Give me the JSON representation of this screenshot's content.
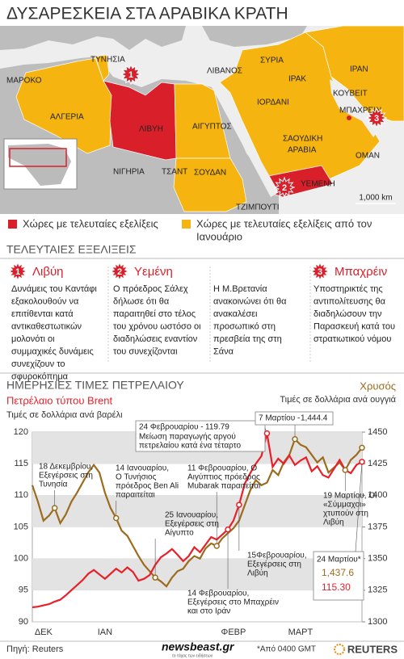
{
  "title": "ΔΥΣΑΡΕΣΚΕΙΑ ΣΤΑ ΑΡΑΒΙΚΑ ΚΡΑΤΗ",
  "map": {
    "labels": [
      "ΜΑΡΟΚΟ",
      "ΤΥΝΗΣΙΑ",
      "ΑΛΓΕΡΙΑ",
      "ΛΙΒΥΗ",
      "ΑΙΓΥΠΤΟΣ",
      "ΛΙΒΑΝΟΣ",
      "ΣΥΡΙΑ",
      "ΙΡΑΚ",
      "ΙΡΑΝ",
      "ΙΟΡΔΑΝΙ",
      "ΚΟΥΒΕΙΤ",
      "ΜΠΑΧΡΕΙΝ",
      "ΣΑΟΥΔΙΚΗ",
      "ΑΡΑΒΙΑ",
      "ΟΜΑΝ",
      "ΥΕΜΕΝΗ",
      "ΣΟΥΔΑΝ",
      "ΤΖΙΜΠΟΥΤΙ",
      "ΝΙΓΗΡΙΑ",
      "ΤΣΑΝΤ"
    ],
    "markers": [
      "1",
      "2",
      "3"
    ],
    "scale": "1,000 km"
  },
  "legend": [
    {
      "color": "#d9202a",
      "lines": [
        "Χώρες με τελευταίες εξελίξεις"
      ]
    },
    {
      "color": "#f5b40f",
      "lines": [
        "Χώρες με τελευταίες εξελίξεις από τον",
        "Ιανουάριο"
      ]
    }
  ],
  "developments": {
    "heading": "ΤΕΛΕΥΤΑΙΕΣ ΕΞΕΛΙΞΕΙΣ",
    "columns": [
      {
        "number": "1",
        "name": "Λιβύη",
        "lines": [
          "Δυνάμεις του Καντάφι",
          "εξακολουθούν να",
          "επιτίθενται κατά",
          "αντικαθεστωτικών",
          "μολονότι οι",
          "συμμαχικές δυνάμεις",
          "συνεχίζουν το",
          "σφυροκόπημα"
        ]
      },
      {
        "number": "2",
        "name": "Υεμένη",
        "lines": [
          "Ο πρόεδρος Σάλεχ",
          "δήλωσε ότι θα",
          "παραιτηθεί στο τέλος",
          "του χρόνου ωστόσο οι",
          "διαδηλώσεις εναντίον",
          "του συνεχίζονται"
        ]
      },
      {
        "lines": [
          "Η Μ.Βρετανία",
          "ανακοινώνει ότι θα",
          "ανακαλέσει",
          "προσωπικό στη",
          "πρεσβεία της στη",
          "Σάνα"
        ]
      },
      {
        "number": "3",
        "name": "Μπαχρέιν",
        "lines": [
          "Υποστηρικτές της",
          "αντιπολίτευσης θα",
          "διαδηλώσουν την",
          "Παρασκευή κατά του",
          "στρατιωτικού νόμου"
        ]
      }
    ]
  },
  "chart_data": {
    "type": "line",
    "title": "ΗΜΕΡΗΣΙΕΣ ΤΙΜΕΣ ΠΕΤΡΕΛΑΙΟΥ",
    "y_label": "Πετρέλαιο τύπου Brent",
    "y_sublabel": "Τιμές σε δολλάρια ανά βαρέλι",
    "y2_label": "Χρυσός",
    "y2_sublabel": "Τιμές σε δολλάρια ανά ουγγιά",
    "categories": [
      null,
      null,
      "ΔΕΚ",
      null,
      null,
      null,
      null,
      null,
      null,
      null,
      null,
      null,
      null,
      "ΙΑΝ",
      null,
      null,
      null,
      null,
      null,
      null,
      null,
      null,
      null,
      null,
      null,
      null,
      null,
      null,
      null,
      null,
      null,
      null,
      null,
      null,
      null,
      null,
      "ΦΕΒΡ",
      null,
      null,
      null,
      null,
      null,
      null,
      null,
      null,
      null,
      null,
      null,
      "ΜΑΡΤ",
      null,
      null,
      null,
      null,
      null,
      null,
      null,
      null,
      null,
      null,
      null
    ],
    "ylim": [
      90,
      120
    ],
    "yticks": [
      90,
      95,
      100,
      105,
      110,
      115,
      120
    ],
    "y2lim": [
      1300,
      1450
    ],
    "y2ticks": [
      1300,
      1325,
      1350,
      1375,
      1400,
      1425,
      1450
    ],
    "grid": true,
    "series": [
      {
        "name": "Πετρέλαιο τύπου Brent",
        "color": "#e8202a",
        "values": [
          92.3,
          92.4,
          92.6,
          92.8,
          93.2,
          93.5,
          94.2,
          95.0,
          95.8,
          96.6,
          97.6,
          98.2,
          97.5,
          96.8,
          97.6,
          98.4,
          97.8,
          98.6,
          97.9,
          96.5,
          96.8,
          97.4,
          99.0,
          100.2,
          100.8,
          101.5,
          100.6,
          99.6,
          100.4,
          101.8,
          101.0,
          102.2,
          103.4,
          103.0,
          103.8,
          104.6,
          106.0,
          108.5,
          111.8,
          113.5,
          115.0,
          116.2,
          119.79,
          114.5,
          115.8,
          115.0,
          116.3,
          114.8,
          115.5,
          116.0,
          113.8,
          114.6,
          113.2,
          112.8,
          114.2,
          115.6,
          114.0,
          113.5,
          114.8,
          115.3
        ],
        "value_labels": [
          null,
          null,
          null,
          null,
          null,
          null,
          null,
          null,
          null,
          null,
          null,
          null,
          null,
          null,
          null,
          null,
          null,
          null,
          null,
          null,
          null,
          null,
          null,
          null,
          null,
          null,
          null,
          null,
          null,
          null,
          null,
          null,
          null,
          null,
          null,
          null,
          null,
          null,
          null,
          null,
          null,
          null,
          null,
          null,
          null,
          null,
          null,
          null,
          null,
          null,
          null,
          null,
          null,
          null,
          null,
          null,
          null,
          null,
          null,
          "115.30"
        ]
      },
      {
        "name": "Χρυσός",
        "color": "#9c6b1e",
        "axis": "y2",
        "values": [
          1408,
          1395,
          1380,
          1384,
          1390,
          1378,
          1385,
          1395,
          1402,
          1410,
          1418,
          1424,
          1418,
          1402,
          1390,
          1382,
          1372,
          1368,
          1360,
          1352,
          1345,
          1340,
          1335,
          1332,
          1328,
          1335,
          1340,
          1342,
          1348,
          1352,
          1350,
          1358,
          1362,
          1360,
          1366,
          1370,
          1374,
          1380,
          1392,
          1404,
          1412,
          1408,
          1410,
          1420,
          1416,
          1426,
          1432,
          1444.4,
          1440,
          1438,
          1432,
          1426,
          1430,
          1418,
          1422,
          1426,
          1420,
          1428,
          1432,
          1437.6
        ],
        "value_labels": [
          null,
          null,
          null,
          null,
          null,
          null,
          null,
          null,
          null,
          null,
          null,
          null,
          null,
          null,
          null,
          null,
          null,
          null,
          null,
          null,
          null,
          null,
          null,
          null,
          null,
          null,
          null,
          null,
          null,
          null,
          null,
          null,
          null,
          null,
          null,
          null,
          null,
          null,
          null,
          null,
          null,
          null,
          null,
          null,
          null,
          null,
          null,
          "1,444.4",
          null,
          null,
          null,
          null,
          null,
          null,
          null,
          null,
          null,
          null,
          null,
          "1,437.6"
        ]
      }
    ],
    "annotations": [
      {
        "lines": [
          "18 Δεκεμβρίου,",
          "Εξεγέρσεις στη",
          "Τυνησία"
        ]
      },
      {
        "lines": [
          "14 Ιανουαρίου,",
          "Ο Τυνήσιος",
          "πρόεδρος Ben Ali",
          "παραιτείται"
        ]
      },
      {
        "lines": [
          "25 Ιανουαρίου,",
          "Εξεγέρσεις στη",
          "Αίγυπτο"
        ]
      },
      {
        "lines": [
          "11 Φεβρουαρίου, Ο",
          "Αιγύπτιος πρόεδρος",
          "Mubarak παραιτείται"
        ]
      },
      {
        "lines": [
          "15Φεβρουαρίου,",
          "Εξεγέρσεις στη",
          "Λιβύη"
        ]
      },
      {
        "lines": [
          "14 Φεβρουαρίου,",
          "Εξεγέρσεις στο Μπαχρέιν",
          "και στο Ιράν"
        ]
      },
      {
        "lines": [
          "19 Μαρτίου, Οι",
          "«Σύμμαχοι»",
          "χτυπούν στη",
          "Λιβύη"
        ]
      },
      {
        "text": "24 Φεβρουαρίου -",
        "lines": [
          "Μείωση παραγωγής αργού",
          "πετρελαίου κατά ένα τέταρτο"
        ]
      },
      {
        "text": "7 Μαρτίου -"
      },
      {
        "text": "24 Μαρτίου*"
      }
    ]
  },
  "footer": {
    "source": "Πηγή: Reuters",
    "brand": "newsbeast.gr",
    "tagline": "το τάχος των ειδήσεων",
    "note": "*Από 0400 GMT",
    "agency": "REUTERS"
  }
}
